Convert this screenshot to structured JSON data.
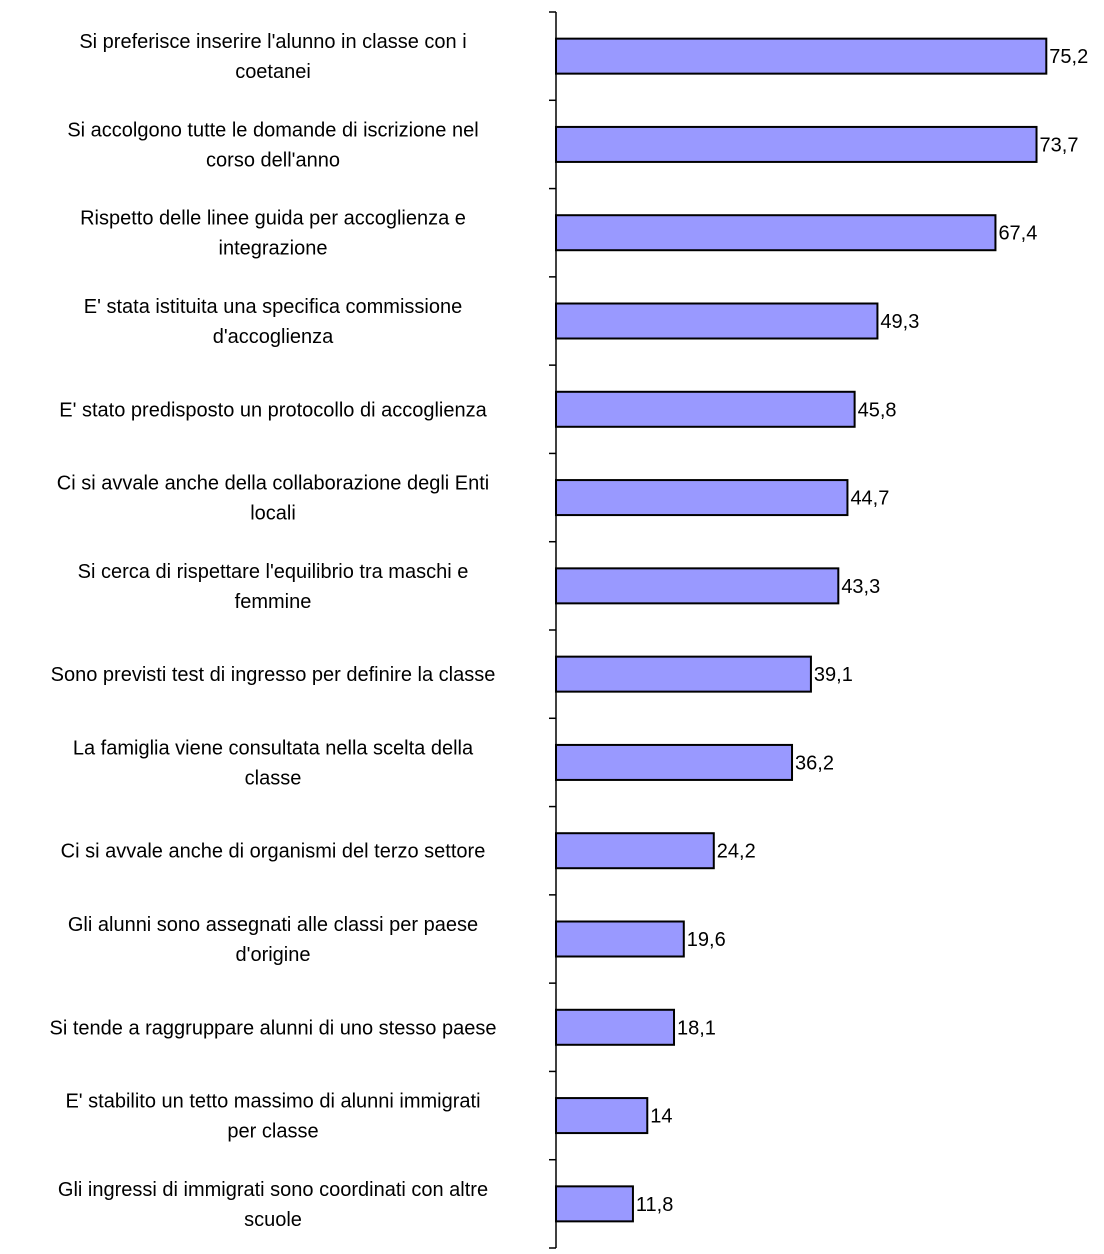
{
  "chart_data": {
    "type": "bar",
    "orientation": "horizontal",
    "bar_color": "#9999ff",
    "title": "",
    "xlabel": "",
    "ylabel": "",
    "grid": false,
    "legend": "none",
    "xlim": [
      0,
      80
    ],
    "categories": [
      [
        "Si preferisce inserire l'alunno in classe con i",
        "coetanei"
      ],
      [
        "Si accolgono tutte le domande di iscrizione nel",
        "corso dell'anno"
      ],
      [
        "Rispetto delle linee guida per accoglienza e",
        "integrazione"
      ],
      [
        "E' stata istituita una specifica commissione",
        "d'accoglienza"
      ],
      [
        "E' stato predisposto un protocollo di accoglienza"
      ],
      [
        "Ci si avvale anche della collaborazione degli Enti",
        "locali"
      ],
      [
        "Si cerca di rispettare l'equilibrio tra maschi e",
        "femmine"
      ],
      [
        "Sono previsti test di ingresso per definire la classe"
      ],
      [
        "La famiglia viene consultata nella scelta della",
        "classe"
      ],
      [
        "Ci si avvale anche di organismi del terzo settore"
      ],
      [
        "Gli alunni sono assegnati alle classi per paese",
        "d'origine"
      ],
      [
        "Si tende a raggruppare alunni di uno stesso paese"
      ],
      [
        "E' stabilito un tetto massimo di alunni immigrati",
        "per classe"
      ],
      [
        "Gli ingressi di immigrati sono coordinati con altre",
        "scuole"
      ]
    ],
    "values": [
      75.2,
      73.7,
      67.4,
      49.3,
      45.8,
      44.7,
      43.3,
      39.1,
      36.2,
      24.2,
      19.6,
      18.1,
      14,
      11.8
    ],
    "value_labels": [
      "75,2",
      "73,7",
      "67,4",
      "49,3",
      "45,8",
      "44,7",
      "43,3",
      "39,1",
      "36,2",
      "24,2",
      "19,6",
      "18,1",
      "14",
      "11,8"
    ]
  }
}
